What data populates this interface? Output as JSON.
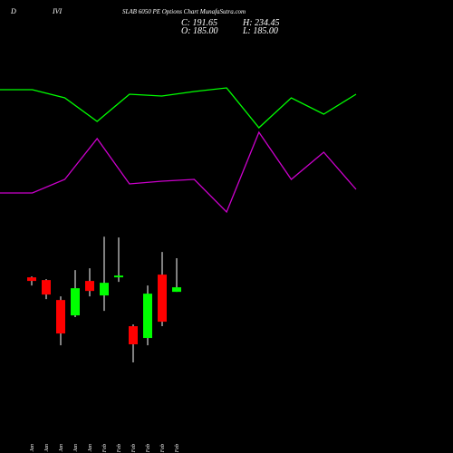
{
  "chart_data": [
    {
      "type": "line",
      "categories": [
        null,
        null,
        null,
        null,
        null,
        null,
        null,
        null,
        null,
        null,
        null,
        null
      ],
      "ylim": [
        0,
        170
      ],
      "series": [
        {
          "color": "#00ff00",
          "values": [
            151,
            151,
            142,
            116,
            146,
            144,
            149,
            153,
            109,
            142,
            124,
            146
          ]
        },
        {
          "color": "#cc00cc",
          "values": [
            37,
            37,
            52,
            97,
            47,
            50,
            52,
            16,
            104,
            52,
            82,
            41
          ]
        }
      ]
    },
    {
      "type": "candlestick",
      "symbol_label": "D",
      "code_label": "IVI",
      "title": "SLAB 6050 PE Options  Chart MunafaSutra.com",
      "ohlc_labels": {
        "close": "C: 191.65",
        "high": "H: 234.45",
        "open": "O: 185.00",
        "low": "L: 185.00"
      },
      "categories": [
        "23 Jan",
        "27 Jan",
        "28 Jan",
        "29 Jan",
        "30 Jan",
        "01 Feb",
        "02 Feb",
        "03 Feb",
        "04 Feb",
        "05 Feb",
        "06 Feb"
      ],
      "open": [
        206.3,
        202.3,
        173.0,
        150.4,
        201.0,
        179.7,
        206.3,
        134.5,
        117.2,
        210.3,
        185.0
      ],
      "high": [
        207.6,
        203.6,
        178.4,
        216.9,
        219.6,
        266.1,
        264.8,
        137.1,
        194.3,
        243.5,
        234.45
      ],
      "low": [
        194.3,
        174.4,
        106.5,
        147.8,
        178.4,
        157.1,
        199.6,
        81.3,
        106.5,
        134.5,
        185.0
      ],
      "close": [
        201.0,
        181.0,
        123.8,
        190.3,
        186.3,
        198.3,
        208.9,
        107.9,
        182.3,
        141.1,
        191.65
      ],
      "up_color": "#00ff00",
      "down_color": "#ff0000",
      "ylim": [
        68,
        281
      ]
    }
  ]
}
